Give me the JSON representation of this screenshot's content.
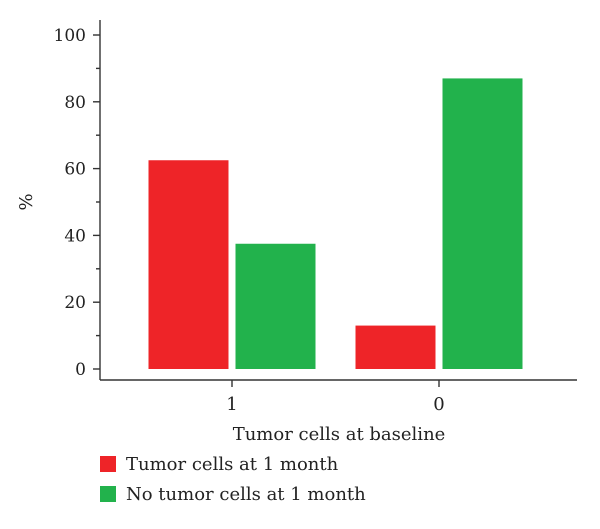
{
  "chart_data": {
    "type": "bar",
    "title": "",
    "xlabel": "Tumor cells at baseline",
    "ylabel": "%",
    "categories": [
      "1",
      "0"
    ],
    "series": [
      {
        "name": "Tumor cells at 1 month",
        "color": "#ee2428",
        "values": [
          62.5,
          13
        ]
      },
      {
        "name": "No tumor cells at 1 month",
        "color": "#22b24c",
        "values": [
          37.5,
          87
        ]
      }
    ],
    "ylim": [
      0,
      100
    ],
    "y_ticks": [
      0,
      20,
      40,
      60,
      80,
      100
    ],
    "grid": false,
    "legend_position": "bottom-left"
  }
}
